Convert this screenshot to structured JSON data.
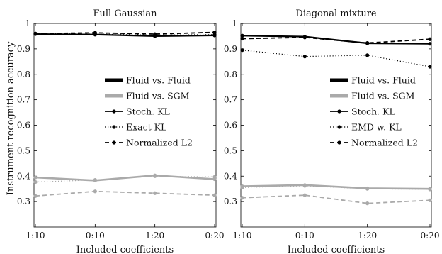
{
  "ylabel": "Instrument recognition accuracy",
  "colors": {
    "black": "#000000",
    "gray": "#aaaaaa"
  },
  "chart_data": [
    {
      "type": "line",
      "title": "Full Gaussian",
      "xlabel": "Included coefficients",
      "ylabel": "Instrument recognition accuracy",
      "categories": [
        "1:10",
        "0:10",
        "1:20",
        "0:20"
      ],
      "ylim": [
        0.2,
        1.0
      ],
      "yticks": [
        "0.3",
        "0.4",
        "0.5",
        "0.6",
        "0.7",
        "0.8",
        "0.9",
        "1"
      ],
      "grid": false,
      "legend_position": "right",
      "legend": [
        {
          "label": "Fluid vs. Fluid",
          "kind": "thick",
          "color": "#000000"
        },
        {
          "label": "Fluid vs. SGM",
          "kind": "thick",
          "color": "#aaaaaa"
        },
        {
          "label": "Stoch. KL",
          "kind": "solid",
          "color": "#000000"
        },
        {
          "label": "Exact KL",
          "kind": "dotted",
          "color": "#000000"
        },
        {
          "label": "Normalized L2",
          "kind": "dashed",
          "color": "#000000"
        }
      ],
      "series": [
        {
          "group": "Fluid vs. Fluid",
          "method": "Stoch. KL",
          "values": [
            0.958,
            0.956,
            0.95,
            0.953
          ]
        },
        {
          "group": "Fluid vs. Fluid",
          "method": "Exact KL",
          "values": [
            0.96,
            0.958,
            0.954,
            0.956
          ]
        },
        {
          "group": "Fluid vs. Fluid",
          "method": "Normalized L2",
          "values": [
            0.96,
            0.963,
            0.958,
            0.965
          ]
        },
        {
          "group": "Fluid vs. SGM",
          "method": "Stoch. KL",
          "values": [
            0.395,
            0.383,
            0.403,
            0.388
          ]
        },
        {
          "group": "Fluid vs. SGM",
          "method": "Exact KL",
          "values": [
            0.377,
            0.385,
            0.4,
            0.397
          ]
        },
        {
          "group": "Fluid vs. SGM",
          "method": "Normalized L2",
          "values": [
            0.322,
            0.34,
            0.333,
            0.325
          ]
        }
      ]
    },
    {
      "type": "line",
      "title": "Diagonal mixture",
      "xlabel": "Included coefficients",
      "ylabel": "Instrument recognition accuracy",
      "categories": [
        "1:10",
        "0:10",
        "1:20",
        "0:20"
      ],
      "ylim": [
        0.2,
        1.0
      ],
      "yticks": [
        "0.3",
        "0.4",
        "0.5",
        "0.6",
        "0.7",
        "0.8",
        "0.9",
        "1"
      ],
      "grid": false,
      "legend_position": "right",
      "legend": [
        {
          "label": "Fluid vs. Fluid",
          "kind": "thick",
          "color": "#000000"
        },
        {
          "label": "Fluid vs. SGM",
          "kind": "thick",
          "color": "#aaaaaa"
        },
        {
          "label": "Stoch. KL",
          "kind": "solid",
          "color": "#000000"
        },
        {
          "label": "EMD w. KL",
          "kind": "dotted",
          "color": "#000000"
        },
        {
          "label": "Normalized L2",
          "kind": "dashed",
          "color": "#000000"
        }
      ],
      "series": [
        {
          "group": "Fluid vs. Fluid",
          "method": "Stoch. KL",
          "values": [
            0.952,
            0.948,
            0.922,
            0.92
          ]
        },
        {
          "group": "Fluid vs. Fluid",
          "method": "EMD w. KL",
          "values": [
            0.895,
            0.87,
            0.875,
            0.83
          ]
        },
        {
          "group": "Fluid vs. Fluid",
          "method": "Normalized L2",
          "values": [
            0.94,
            0.945,
            0.923,
            0.938
          ]
        },
        {
          "group": "Fluid vs. SGM",
          "method": "Stoch. KL",
          "values": [
            0.36,
            0.365,
            0.352,
            0.35
          ]
        },
        {
          "group": "Fluid vs. SGM",
          "method": "EMD w. KL",
          "values": [
            0.355,
            0.362,
            0.35,
            0.348
          ]
        },
        {
          "group": "Fluid vs. SGM",
          "method": "Normalized L2",
          "values": [
            0.315,
            0.325,
            0.293,
            0.305
          ]
        }
      ]
    }
  ]
}
